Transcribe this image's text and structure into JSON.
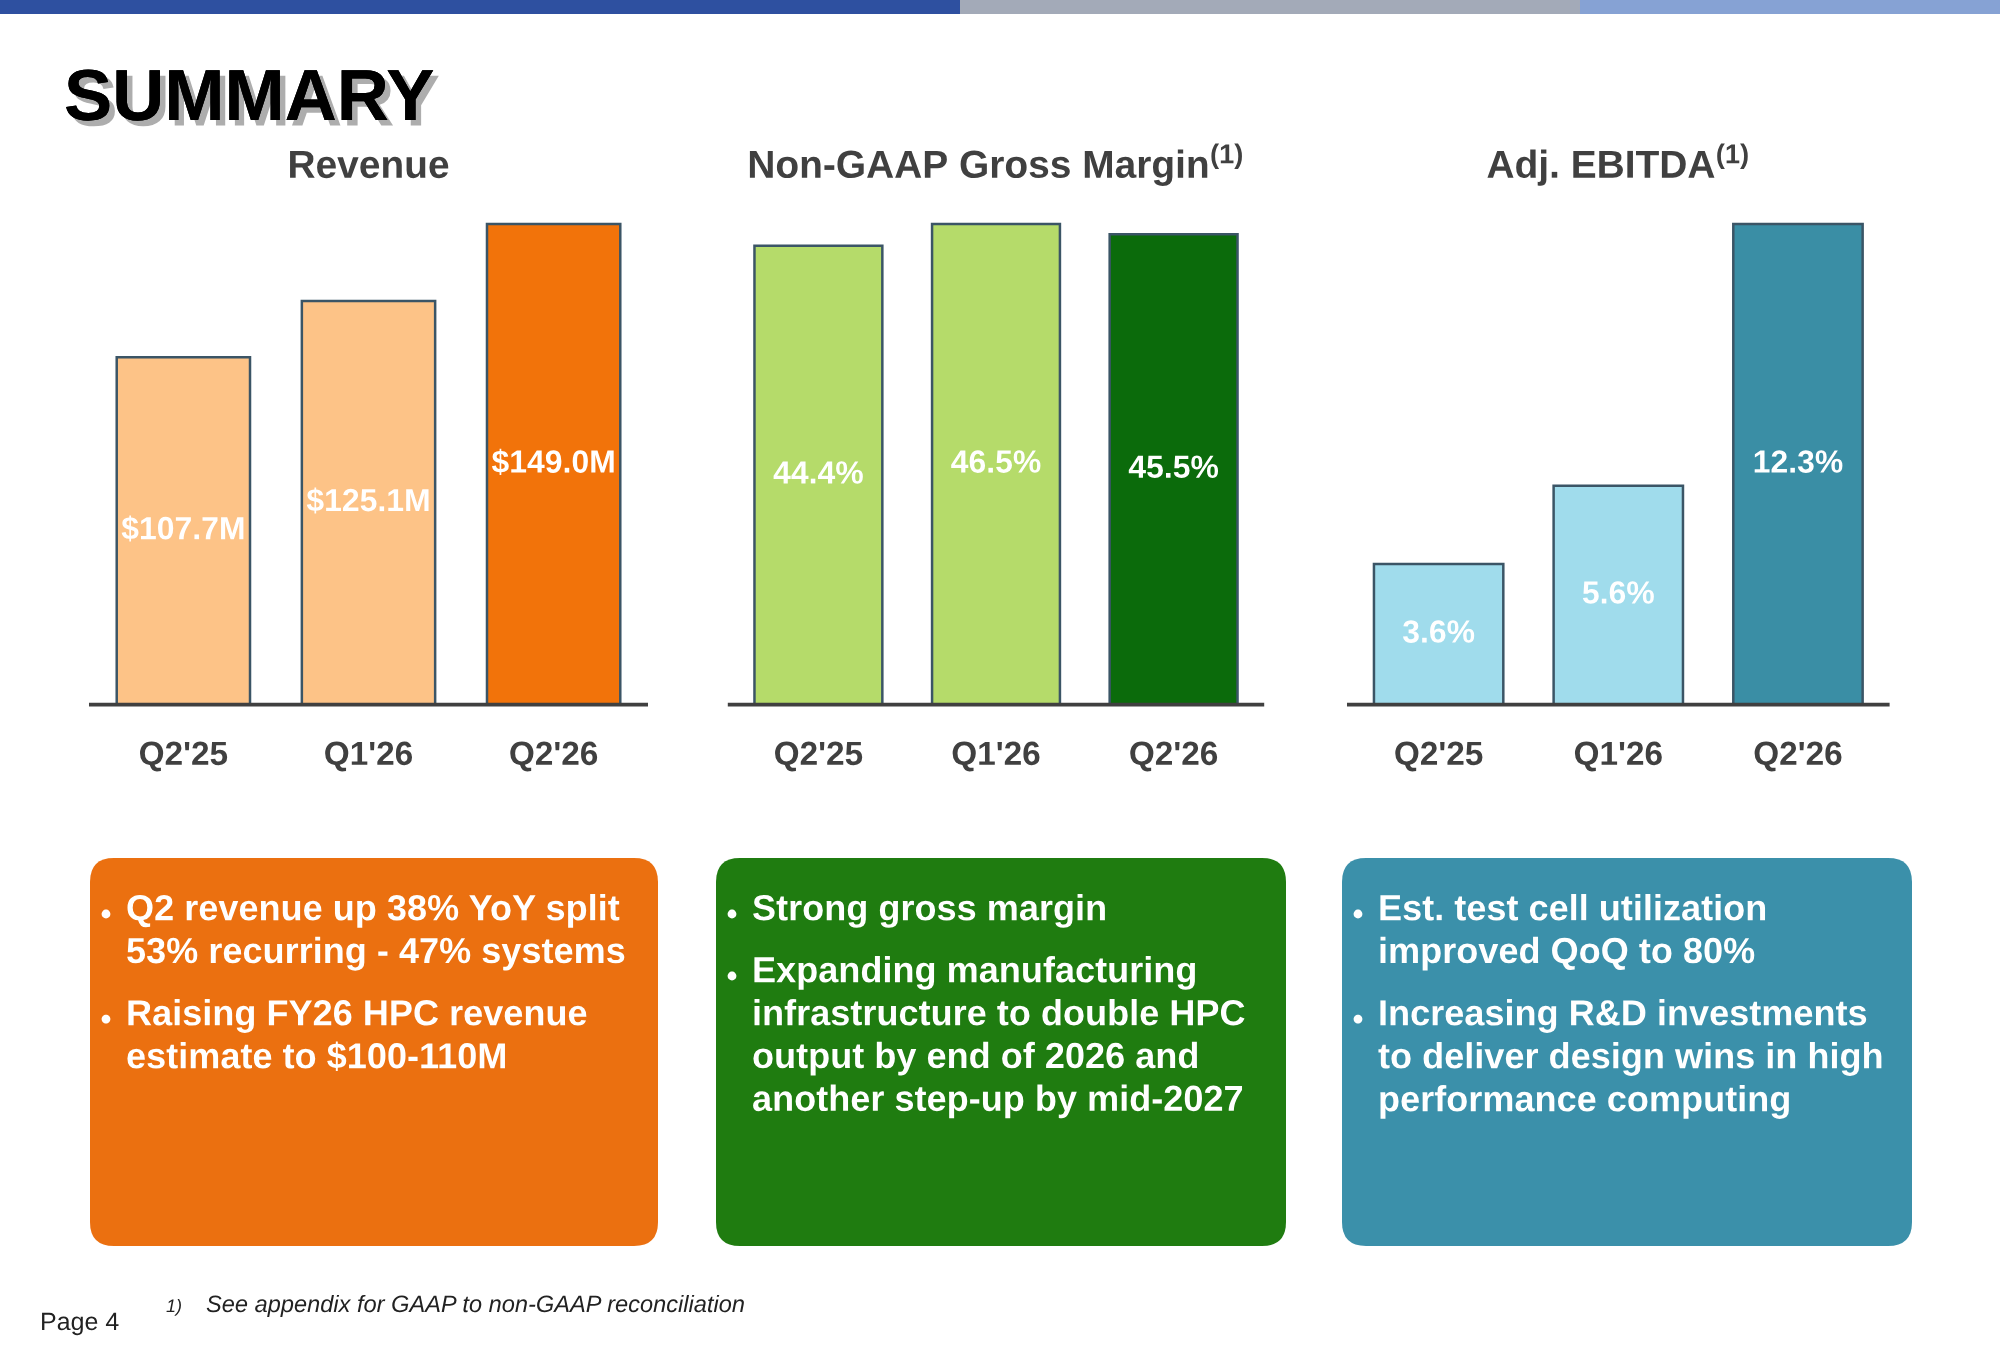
{
  "chart_data": [
    {
      "type": "other",
      "title": "SUMMARY"
    },
    {
      "type": "bar",
      "title": "Revenue",
      "categories": [
        "Q2'25",
        "Q1'26",
        "Q2'26"
      ],
      "values": [
        107.7,
        125.1,
        149.0
      ],
      "colors": [
        "#fdc387",
        "#fdc387",
        "#f2730a"
      ],
      "value_labels": [
        "$107.7M",
        "$125.1M",
        "$149.0M"
      ],
      "tick_labels": "x"
    },
    {
      "type": "bar",
      "title": "Non-GAAP Gross Margin$^{(1)}$",
      "categories": [
        "Q2'25",
        "Q1'26",
        "Q2'26"
      ],
      "values": [
        44.4,
        46.5,
        45.5
      ],
      "colors": [
        "#b5db6a",
        "#b5db6a",
        "#0b6b0b"
      ],
      "value_labels": [
        "44.4%",
        "46.5%",
        "45.5%"
      ],
      "tick_labels": "x"
    },
    {
      "type": "bar",
      "title": "Adj. EBITDA$^{(1)}$",
      "categories": [
        "Q2'25",
        "Q1'26",
        "Q2'26"
      ],
      "values": [
        3.6,
        5.6,
        12.3
      ],
      "colors": [
        "#a0dcec",
        "#a0dcec",
        "#3a8ea5"
      ],
      "value_labels": [
        "3.6%",
        "5.6%",
        "12.3%"
      ],
      "tick_labels": "x"
    },
    {
      "type": "other",
      "color": "#eb7010",
      "annotations": [
        "Q2 revenue up 38% YoY split\n53% recurring - 47% systems",
        "Raising FY26 HPC revenue\nestimate to $100-110M"
      ]
    },
    {
      "type": "other",
      "color": "#1f7c10",
      "annotations": [
        "Strong gross margin",
        "Expanding manufacturing\ninfrastructure to double HPC\noutput by end of 2026 and\nanother step-up by mid-2027"
      ]
    },
    {
      "type": "other",
      "color": "#3b90aa",
      "annotations": [
        "Est. test cell utilization\nimproved QoQ to 80%",
        "Increasing R&D investments\nto deliver design wins in high\nperformance computing"
      ]
    },
    {
      "type": "other",
      "annotations": [
        "1)",
        "See appendix for GAAP to non-GAAP reconciliation",
        "Page 4"
      ]
    }
  ]
}
